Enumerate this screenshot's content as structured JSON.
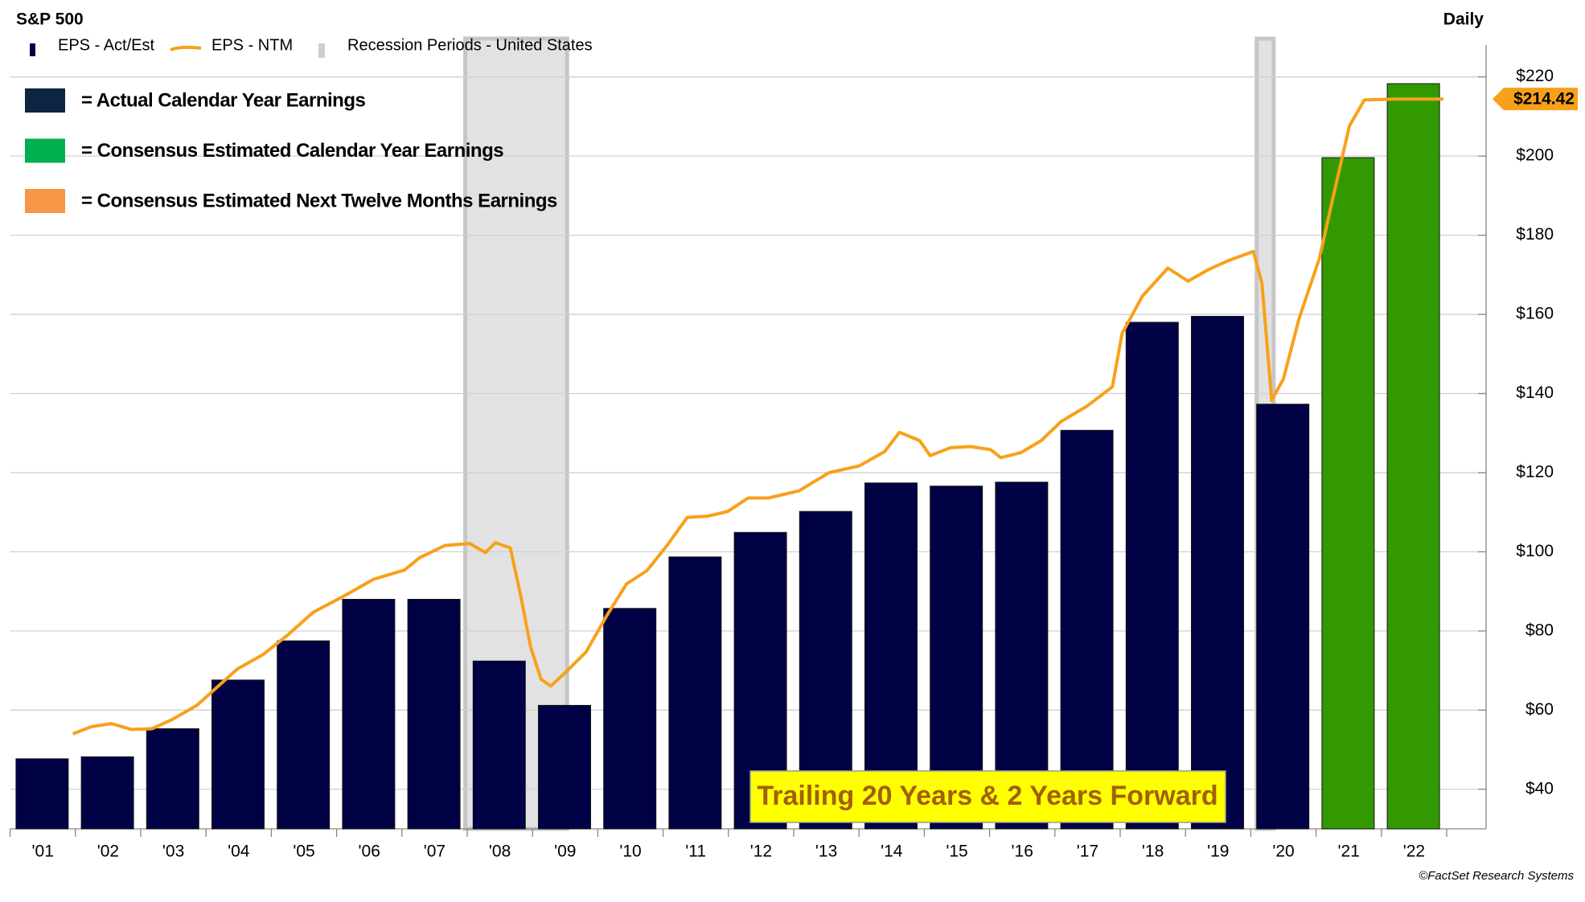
{
  "chart_data": {
    "type": "bar",
    "title": "S&P 500",
    "frequency_label": "Daily",
    "source": "©FactSet Research Systems",
    "annotation": "Trailing 20 Years & 2 Years Forward",
    "last_value_label": "$214.42",
    "categories": [
      "'01",
      "'02",
      "'03",
      "'04",
      "'05",
      "'06",
      "'07",
      "'08",
      "'09",
      "'10",
      "'11",
      "'12",
      "'13",
      "'14",
      "'15",
      "'16",
      "'17",
      "'18",
      "'19",
      "'20",
      "'21",
      "'22"
    ],
    "xlim": [
      2001,
      2023
    ],
    "ylim": [
      30,
      224
    ],
    "yticks": [
      {
        "value": 40,
        "label": "$40"
      },
      {
        "value": 60,
        "label": "$60"
      },
      {
        "value": 80,
        "label": "$80"
      },
      {
        "value": 100,
        "label": "$100"
      },
      {
        "value": 120,
        "label": "$120"
      },
      {
        "value": 140,
        "label": "$140"
      },
      {
        "value": 160,
        "label": "$160"
      },
      {
        "value": 180,
        "label": "$180"
      },
      {
        "value": 200,
        "label": "$200"
      },
      {
        "value": 220,
        "label": "$220"
      }
    ],
    "grid": true,
    "series": [
      {
        "name": "EPS - Act/Est",
        "type": "bar",
        "color": "#000045",
        "colors": [
          "#000045",
          "#000045",
          "#000045",
          "#000045",
          "#000045",
          "#000045",
          "#000045",
          "#000045",
          "#000045",
          "#000045",
          "#000045",
          "#000045",
          "#000045",
          "#000045",
          "#000045",
          "#000045",
          "#000045",
          "#000045",
          "#000045",
          "#000045",
          "#339900",
          "#339900"
        ],
        "values": [
          47.7,
          48.2,
          55.3,
          67.6,
          77.5,
          88.0,
          88.0,
          72.4,
          61.2,
          85.7,
          98.7,
          104.9,
          110.2,
          117.4,
          116.6,
          117.6,
          130.7,
          158.0,
          159.5,
          137.3,
          199.6,
          218.3
        ]
      },
      {
        "name": "EPS - NTM",
        "type": "line",
        "color": "#f7a11a",
        "x": [
          2001.96,
          2002.24,
          2002.55,
          2002.86,
          2003.17,
          2003.48,
          2003.86,
          2004.17,
          2004.48,
          2004.87,
          2005.26,
          2005.64,
          2006.11,
          2006.57,
          2007.04,
          2007.27,
          2007.66,
          2008.04,
          2008.28,
          2008.43,
          2008.66,
          2008.82,
          2008.97,
          2009.13,
          2009.28,
          2009.51,
          2009.82,
          2010.13,
          2010.44,
          2010.75,
          2011.06,
          2011.37,
          2011.68,
          2011.99,
          2012.3,
          2012.61,
          2013.08,
          2013.54,
          2014.0,
          2014.39,
          2014.62,
          2014.93,
          2015.09,
          2015.4,
          2015.71,
          2016.02,
          2016.17,
          2016.48,
          2016.79,
          2017.1,
          2017.49,
          2017.88,
          2018.03,
          2018.34,
          2018.73,
          2019.04,
          2019.35,
          2019.66,
          2020.04,
          2020.17,
          2020.32,
          2020.5,
          2020.74,
          2021.05,
          2021.28,
          2021.51,
          2021.74,
          2022.21,
          2022.95
        ],
        "values": [
          54.0,
          55.8,
          56.6,
          55.1,
          55.3,
          57.6,
          61.2,
          65.8,
          70.4,
          74.0,
          79.1,
          84.7,
          88.8,
          93.1,
          95.4,
          98.5,
          101.6,
          102.1,
          99.8,
          102.3,
          101.0,
          88.8,
          76.0,
          67.8,
          66.1,
          69.6,
          74.7,
          83.7,
          91.9,
          95.2,
          101.6,
          108.7,
          109.0,
          110.2,
          113.6,
          113.6,
          115.4,
          120.0,
          121.7,
          125.3,
          130.2,
          128.1,
          124.3,
          126.3,
          126.6,
          125.8,
          123.8,
          125.1,
          128.1,
          133.0,
          136.8,
          141.7,
          155.2,
          164.6,
          171.7,
          168.4,
          171.3,
          173.6,
          175.9,
          168.0,
          138.3,
          143.7,
          159.0,
          174.1,
          191.0,
          207.6,
          214.2,
          214.4,
          214.42
        ]
      }
    ],
    "recessions": {
      "name": "Recession Periods - United States",
      "color": "#e2e2e2",
      "ranges": [
        [
          2007.97,
          2009.53
        ],
        [
          2020.09,
          2020.35
        ]
      ]
    },
    "key_boxes": [
      {
        "label": "= Actual Calendar Year Earnings",
        "color": "#0d2540"
      },
      {
        "label": "= Consensus Estimated Calendar Year Earnings",
        "color": "#00b050"
      },
      {
        "label": "= Consensus Estimated Next Twelve Months Earnings",
        "color": "#f79646"
      }
    ]
  }
}
